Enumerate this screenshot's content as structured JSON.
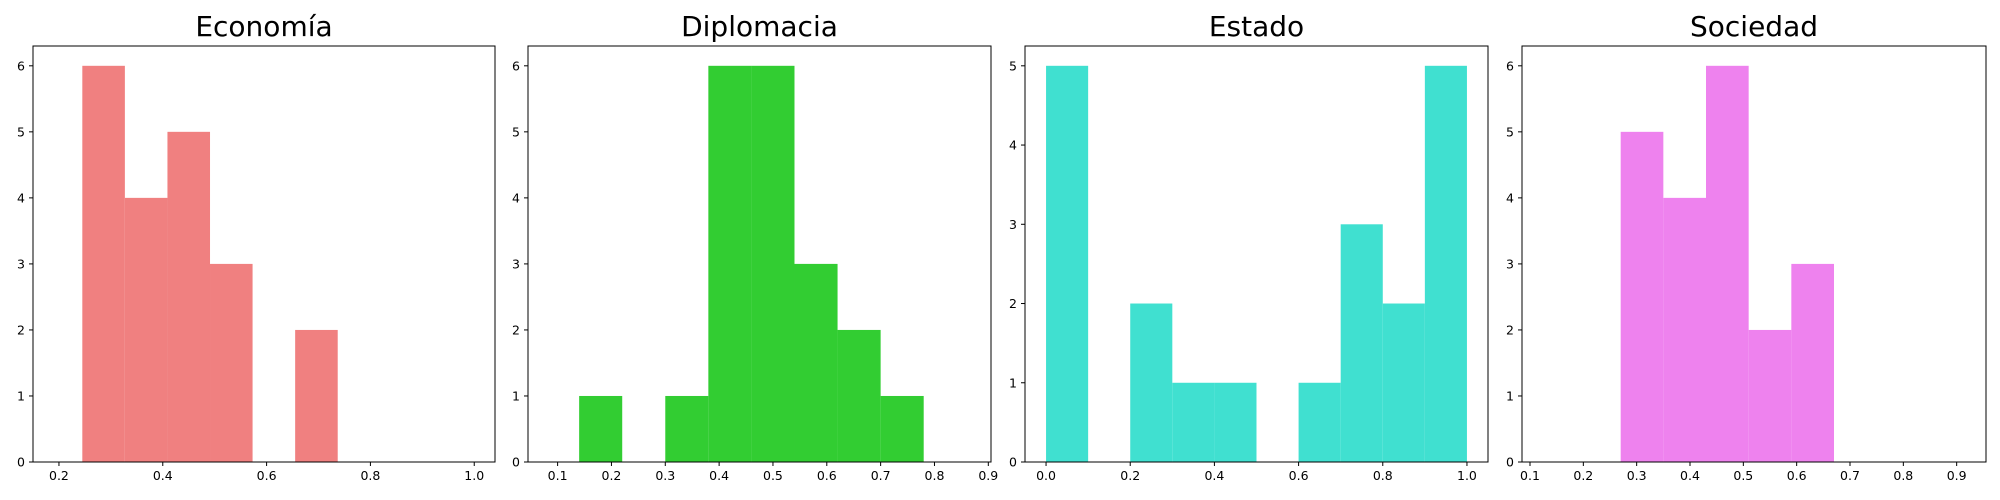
{
  "chart_data": [
    {
      "type": "bar",
      "title": "Economía",
      "color": "#F08080",
      "xlim": [
        0.15,
        1.04
      ],
      "ylim": [
        0,
        6.3
      ],
      "xticks": [
        0.2,
        0.4,
        0.6,
        0.8,
        1.0
      ],
      "xtick_labels": [
        "0.2",
        "0.4",
        "0.6",
        "0.8",
        "1.0"
      ],
      "yticks": [
        0,
        1,
        2,
        3,
        4,
        5,
        6
      ],
      "ytick_labels": [
        "0",
        "1",
        "2",
        "3",
        "4",
        "5",
        "6"
      ],
      "bins": [
        {
          "x0": 0.245,
          "x1": 0.327,
          "count": 6
        },
        {
          "x0": 0.327,
          "x1": 0.409,
          "count": 4
        },
        {
          "x0": 0.409,
          "x1": 0.491,
          "count": 5
        },
        {
          "x0": 0.491,
          "x1": 0.573,
          "count": 3
        },
        {
          "x0": 0.573,
          "x1": 0.655,
          "count": 0
        },
        {
          "x0": 0.655,
          "x1": 0.737,
          "count": 2
        }
      ]
    },
    {
      "type": "bar",
      "title": "Diplomacia",
      "color": "#32CD32",
      "xlim": [
        0.045,
        0.905
      ],
      "ylim": [
        0,
        6.3
      ],
      "xticks": [
        0.1,
        0.2,
        0.3,
        0.4,
        0.5,
        0.6,
        0.7,
        0.8,
        0.9
      ],
      "xtick_labels": [
        "0.1",
        "0.2",
        "0.3",
        "0.4",
        "0.5",
        "0.6",
        "0.7",
        "0.8",
        "0.9"
      ],
      "yticks": [
        0,
        1,
        2,
        3,
        4,
        5,
        6
      ],
      "ytick_labels": [
        "0",
        "1",
        "2",
        "3",
        "4",
        "5",
        "6"
      ],
      "bins": [
        {
          "x0": 0.14,
          "x1": 0.22,
          "count": 1
        },
        {
          "x0": 0.22,
          "x1": 0.3,
          "count": 0
        },
        {
          "x0": 0.3,
          "x1": 0.38,
          "count": 1
        },
        {
          "x0": 0.38,
          "x1": 0.46,
          "count": 6
        },
        {
          "x0": 0.46,
          "x1": 0.54,
          "count": 6
        },
        {
          "x0": 0.54,
          "x1": 0.62,
          "count": 3
        },
        {
          "x0": 0.62,
          "x1": 0.7,
          "count": 2
        },
        {
          "x0": 0.7,
          "x1": 0.78,
          "count": 1
        }
      ]
    },
    {
      "type": "bar",
      "title": "Estado",
      "color": "#40E0D0",
      "xlim": [
        -0.05,
        1.05
      ],
      "ylim": [
        0,
        5.25
      ],
      "xticks": [
        0.0,
        0.2,
        0.4,
        0.6,
        0.8,
        1.0
      ],
      "xtick_labels": [
        "0.0",
        "0.2",
        "0.4",
        "0.6",
        "0.8",
        "1.0"
      ],
      "yticks": [
        0,
        1,
        2,
        3,
        4,
        5
      ],
      "ytick_labels": [
        "0",
        "1",
        "2",
        "3",
        "4",
        "5"
      ],
      "bins": [
        {
          "x0": 0.0,
          "x1": 0.1,
          "count": 5
        },
        {
          "x0": 0.1,
          "x1": 0.2,
          "count": 0
        },
        {
          "x0": 0.2,
          "x1": 0.3,
          "count": 2
        },
        {
          "x0": 0.3,
          "x1": 0.4,
          "count": 1
        },
        {
          "x0": 0.4,
          "x1": 0.5,
          "count": 1
        },
        {
          "x0": 0.5,
          "x1": 0.6,
          "count": 0
        },
        {
          "x0": 0.6,
          "x1": 0.7,
          "count": 1
        },
        {
          "x0": 0.7,
          "x1": 0.8,
          "count": 3
        },
        {
          "x0": 0.8,
          "x1": 0.9,
          "count": 2
        },
        {
          "x0": 0.9,
          "x1": 1.0,
          "count": 5
        }
      ]
    },
    {
      "type": "bar",
      "title": "Sociedad",
      "color": "#EE82EE",
      "xlim": [
        0.085,
        0.955
      ],
      "ylim": [
        0,
        6.3
      ],
      "xticks": [
        0.1,
        0.2,
        0.3,
        0.4,
        0.5,
        0.6,
        0.7,
        0.8,
        0.9
      ],
      "xtick_labels": [
        "0.1",
        "0.2",
        "0.3",
        "0.4",
        "0.5",
        "0.6",
        "0.7",
        "0.8",
        "0.9"
      ],
      "yticks": [
        0,
        1,
        2,
        3,
        4,
        5,
        6
      ],
      "ytick_labels": [
        "0",
        "1",
        "2",
        "3",
        "4",
        "5",
        "6"
      ],
      "bins": [
        {
          "x0": 0.27,
          "x1": 0.35,
          "count": 5
        },
        {
          "x0": 0.35,
          "x1": 0.43,
          "count": 4
        },
        {
          "x0": 0.43,
          "x1": 0.51,
          "count": 6
        },
        {
          "x0": 0.51,
          "x1": 0.59,
          "count": 2
        },
        {
          "x0": 0.59,
          "x1": 0.67,
          "count": 3
        }
      ]
    }
  ]
}
